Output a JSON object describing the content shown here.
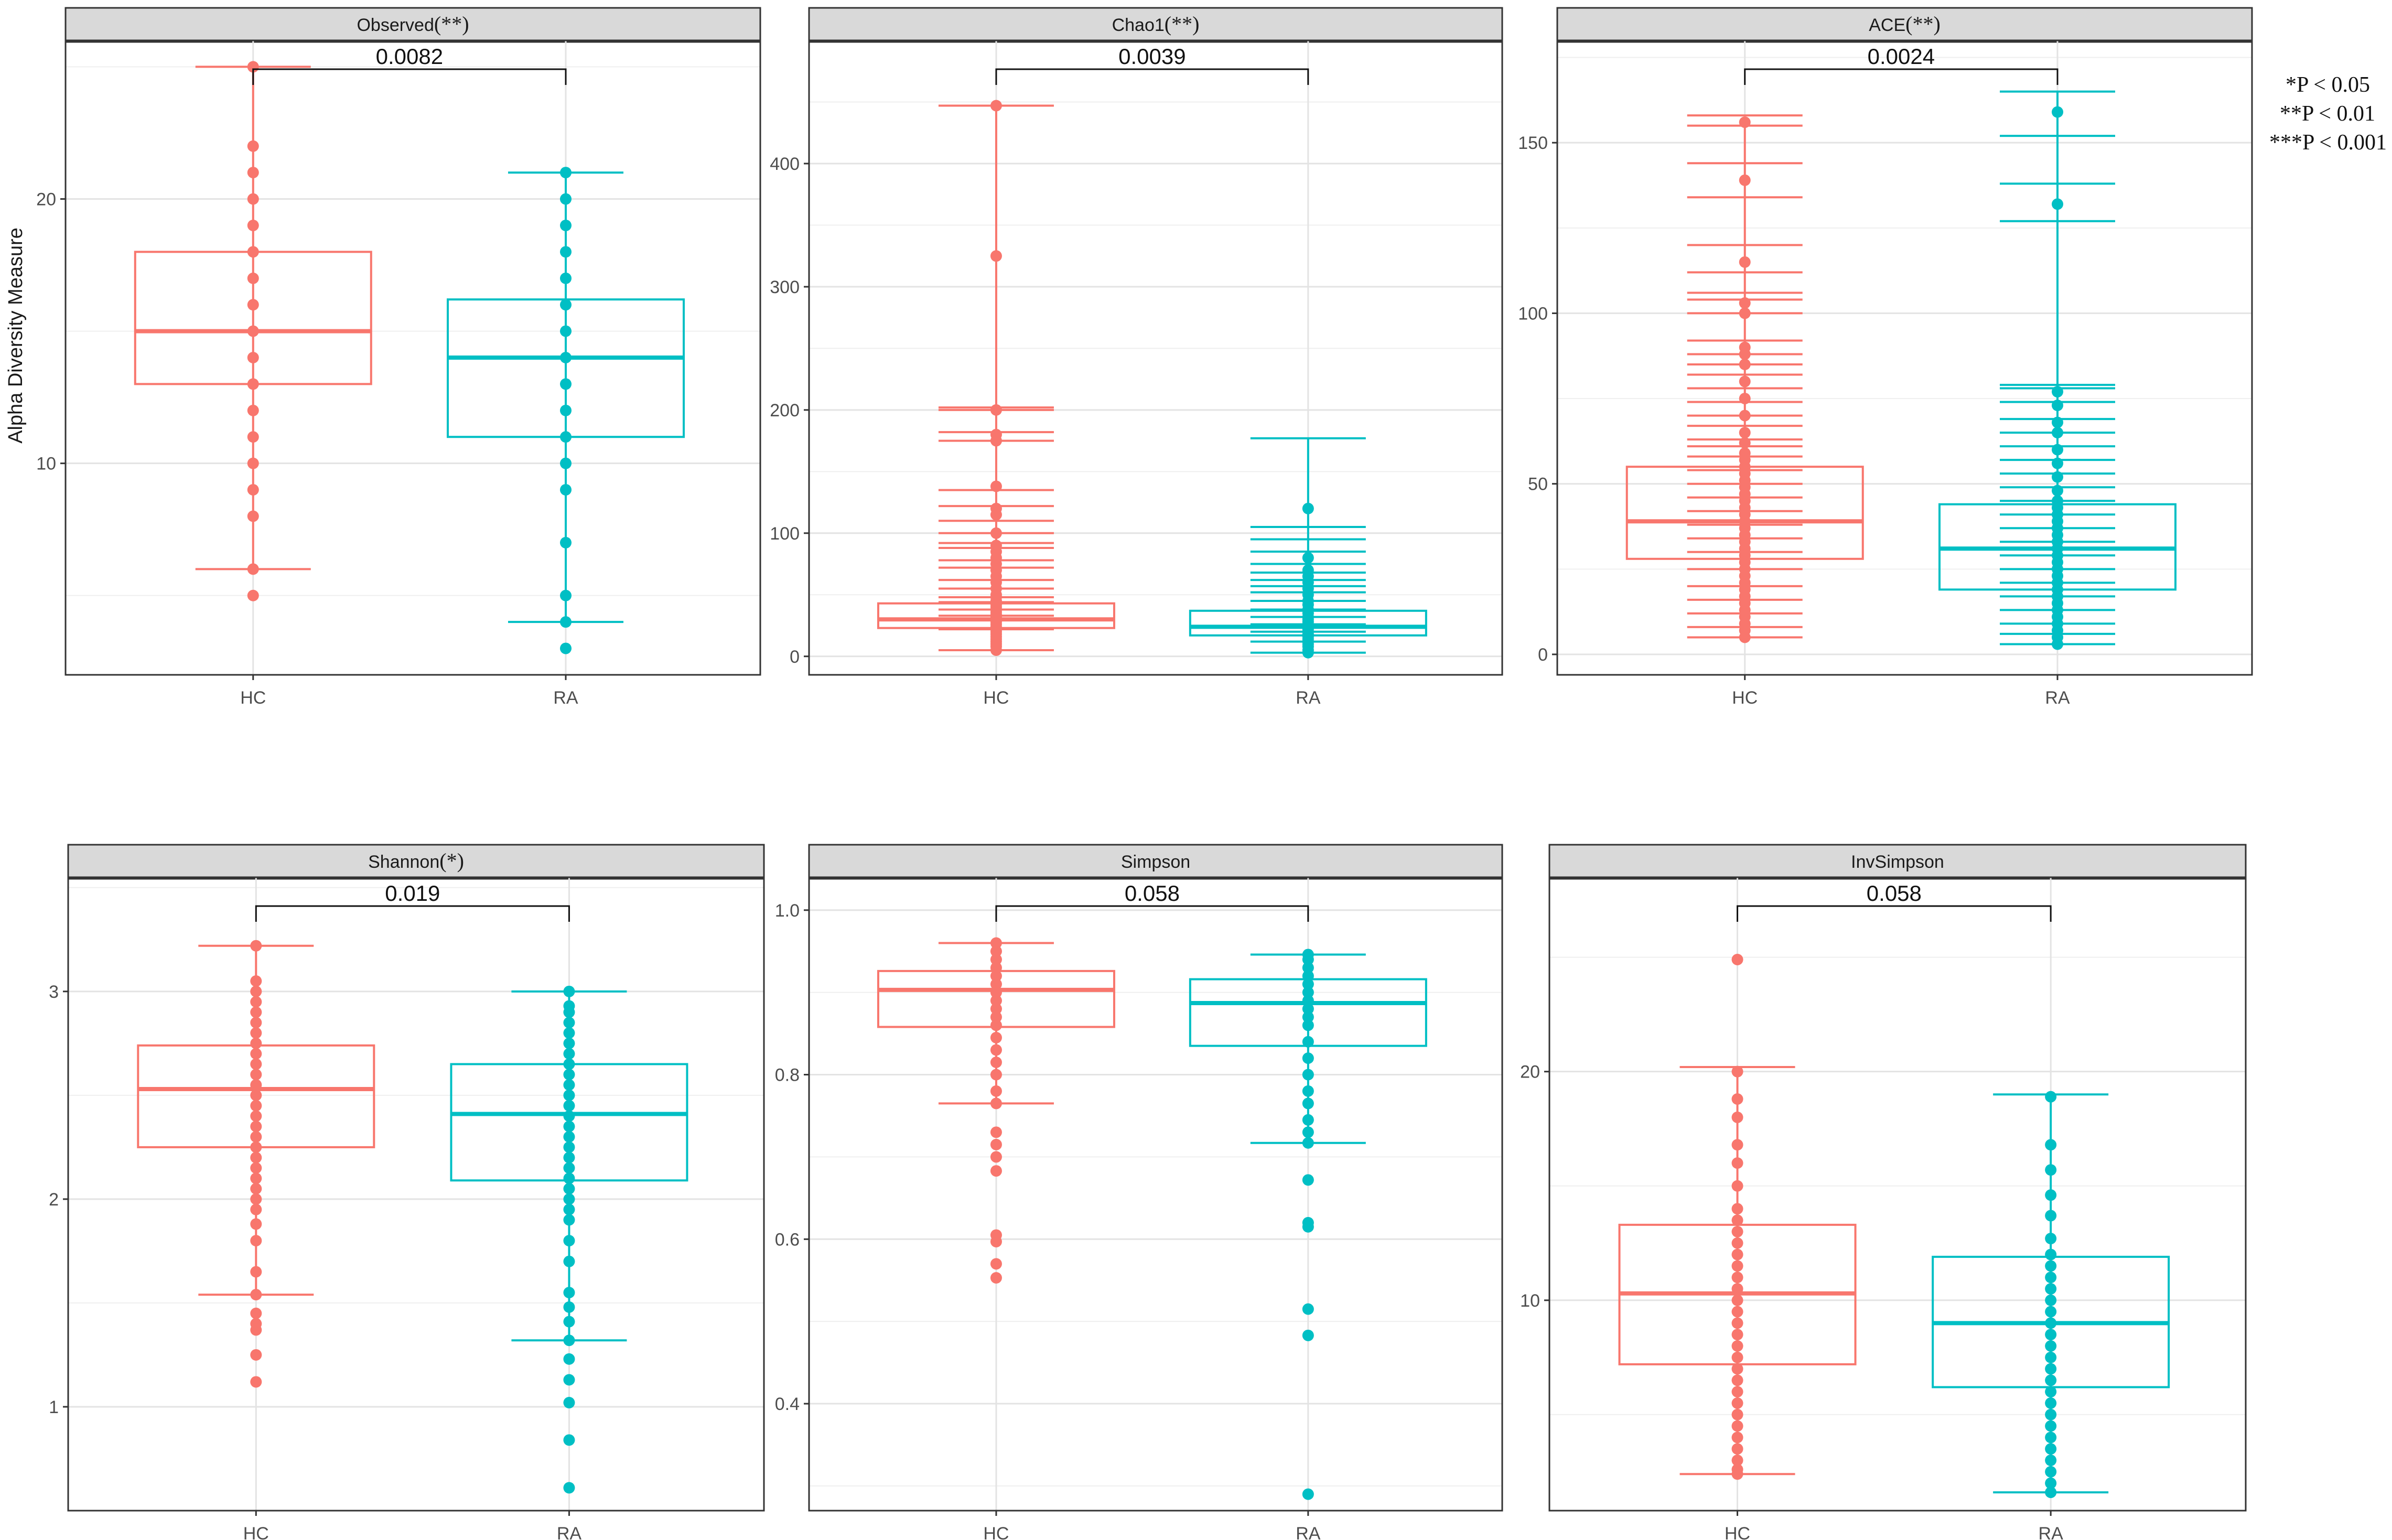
{
  "figure": {
    "y_axis_label": "Alpha Diversity Measure",
    "legend_lines": [
      "*P < 0.05",
      "**P < 0.01",
      "***P < 0.001"
    ]
  },
  "colors": {
    "HC": "#F8766D",
    "RA": "#00BFC4"
  },
  "chart_data": [
    {
      "type": "box",
      "title": "Observed",
      "sig": "(**)",
      "p_label": "0.0082",
      "categories": [
        "HC",
        "RA"
      ],
      "ylim": [
        2,
        26
      ],
      "yticks": [
        10,
        20
      ],
      "series": [
        {
          "name": "HC",
          "q1": 13,
          "median": 15,
          "q3": 18,
          "whisker_low": 6,
          "whisker_high": 25,
          "points": [
            5,
            6,
            8,
            9,
            10,
            11,
            12,
            13,
            14,
            15,
            16,
            17,
            18,
            19,
            20,
            21,
            22,
            25
          ]
        },
        {
          "name": "RA",
          "q1": 11,
          "median": 14,
          "q3": 16.2,
          "whisker_low": 4,
          "whisker_high": 21,
          "points": [
            3,
            4,
            5,
            7,
            9,
            10,
            11,
            12,
            13,
            14,
            15,
            16,
            17,
            18,
            19,
            20,
            21
          ]
        }
      ]
    },
    {
      "type": "box",
      "title": "Chao1",
      "sig": "(**)",
      "p_label": "0.0039",
      "categories": [
        "HC",
        "RA"
      ],
      "ylim": [
        -15,
        500
      ],
      "yticks": [
        0,
        100,
        200,
        300,
        400
      ],
      "series": [
        {
          "name": "HC",
          "q1": 23,
          "median": 30,
          "q3": 43,
          "whisker_low": 5,
          "whisker_high": 447,
          "points": [
            5,
            8,
            10,
            12,
            14,
            16,
            18,
            20,
            22,
            24,
            26,
            28,
            30,
            32,
            34,
            36,
            38,
            40,
            42,
            45,
            48,
            50,
            55,
            60,
            65,
            70,
            75,
            80,
            85,
            90,
            100,
            115,
            120,
            138,
            175,
            180,
            200,
            325,
            447
          ],
          "whisker_caps": [
            5,
            22,
            30,
            33,
            38,
            44,
            48,
            55,
            62,
            72,
            78,
            88,
            92,
            100,
            110,
            122,
            135,
            175,
            182,
            200,
            202,
            447
          ]
        },
        {
          "name": "RA",
          "q1": 17,
          "median": 24,
          "q3": 37,
          "whisker_low": 3,
          "whisker_high": 177,
          "points": [
            3,
            5,
            8,
            10,
            12,
            14,
            16,
            18,
            20,
            22,
            24,
            26,
            28,
            30,
            32,
            35,
            38,
            42,
            45,
            50,
            55,
            60,
            65,
            70,
            80,
            120
          ],
          "whisker_caps": [
            3,
            12,
            20,
            26,
            32,
            38,
            45,
            52,
            57,
            62,
            68,
            75,
            85,
            95,
            105,
            177
          ]
        }
      ]
    },
    {
      "type": "box",
      "title": "ACE",
      "sig": "(**)",
      "p_label": "0.0024",
      "categories": [
        "HC",
        "RA"
      ],
      "ylim": [
        -6,
        180
      ],
      "yticks": [
        0,
        50,
        100,
        150
      ],
      "series": [
        {
          "name": "HC",
          "q1": 28,
          "median": 39,
          "q3": 55,
          "whisker_low": 5,
          "whisker_high": 157,
          "points": [
            5,
            7,
            9,
            11,
            13,
            15,
            17,
            19,
            21,
            23,
            25,
            27,
            29,
            31,
            33,
            35,
            37,
            39,
            41,
            43,
            45,
            47,
            49,
            51,
            53,
            55,
            57,
            59,
            62,
            65,
            70,
            75,
            80,
            85,
            88,
            90,
            100,
            103,
            115,
            139,
            156
          ],
          "whisker_caps": [
            5,
            8,
            12,
            16,
            20,
            25,
            30,
            34,
            38,
            42,
            46,
            50,
            54,
            58,
            61,
            63,
            67,
            70,
            74,
            78,
            82,
            85,
            88,
            92,
            100,
            104,
            106,
            112,
            120,
            134,
            144,
            155,
            158
          ]
        },
        {
          "name": "RA",
          "q1": 19,
          "median": 31,
          "q3": 44,
          "whisker_low": 3,
          "whisker_high": 165,
          "points": [
            3,
            5,
            7,
            9,
            11,
            13,
            15,
            17,
            19,
            21,
            23,
            25,
            27,
            29,
            31,
            33,
            35,
            37,
            39,
            41,
            43,
            45,
            48,
            52,
            56,
            60,
            65,
            68,
            73,
            77,
            132,
            159
          ],
          "whisker_caps": [
            3,
            6,
            9,
            13,
            17,
            21,
            25,
            29,
            33,
            37,
            41,
            45,
            49,
            53,
            57,
            61,
            65,
            69,
            74,
            78,
            79,
            127,
            138,
            152,
            165
          ]
        }
      ]
    },
    {
      "type": "box",
      "title": "Shannon",
      "sig": "(*)",
      "p_label": "0.019",
      "categories": [
        "HC",
        "RA"
      ],
      "ylim": [
        0.5,
        3.55
      ],
      "yticks": [
        1,
        2,
        3
      ],
      "series": [
        {
          "name": "HC",
          "q1": 2.25,
          "median": 2.53,
          "q3": 2.74,
          "whisker_low": 1.54,
          "whisker_high": 3.22,
          "points": [
            1.12,
            1.25,
            1.37,
            1.4,
            1.45,
            1.54,
            1.65,
            1.8,
            1.88,
            1.95,
            2.0,
            2.05,
            2.1,
            2.15,
            2.2,
            2.25,
            2.3,
            2.35,
            2.4,
            2.45,
            2.5,
            2.55,
            2.6,
            2.65,
            2.7,
            2.75,
            2.8,
            2.85,
            2.9,
            2.95,
            3.0,
            3.05,
            3.22
          ]
        },
        {
          "name": "RA",
          "q1": 2.09,
          "median": 2.41,
          "q3": 2.65,
          "whisker_low": 1.32,
          "whisker_high": 3.0,
          "points": [
            0.61,
            0.84,
            1.02,
            1.13,
            1.23,
            1.32,
            1.41,
            1.48,
            1.55,
            1.7,
            1.8,
            1.9,
            1.95,
            2.0,
            2.05,
            2.1,
            2.15,
            2.2,
            2.25,
            2.3,
            2.35,
            2.4,
            2.45,
            2.5,
            2.55,
            2.6,
            2.65,
            2.7,
            2.75,
            2.8,
            2.85,
            2.9,
            2.93,
            3.0
          ]
        }
      ]
    },
    {
      "type": "box",
      "title": "Simpson",
      "sig": "",
      "p_label": "0.058",
      "categories": [
        "HC",
        "RA"
      ],
      "ylim": [
        0.27,
        1.04
      ],
      "yticks": [
        0.4,
        0.6,
        0.8,
        1.0
      ],
      "series": [
        {
          "name": "HC",
          "q1": 0.858,
          "median": 0.903,
          "q3": 0.926,
          "whisker_low": 0.765,
          "whisker_high": 0.96,
          "points": [
            0.553,
            0.57,
            0.597,
            0.605,
            0.683,
            0.7,
            0.715,
            0.73,
            0.765,
            0.78,
            0.8,
            0.815,
            0.83,
            0.845,
            0.86,
            0.87,
            0.88,
            0.89,
            0.9,
            0.91,
            0.92,
            0.93,
            0.94,
            0.95,
            0.96
          ]
        },
        {
          "name": "RA",
          "q1": 0.835,
          "median": 0.887,
          "q3": 0.916,
          "whisker_low": 0.717,
          "whisker_high": 0.946,
          "points": [
            0.29,
            0.483,
            0.515,
            0.615,
            0.62,
            0.672,
            0.717,
            0.73,
            0.745,
            0.765,
            0.78,
            0.8,
            0.82,
            0.84,
            0.86,
            0.87,
            0.88,
            0.89,
            0.9,
            0.91,
            0.92,
            0.93,
            0.94,
            0.946
          ]
        }
      ]
    },
    {
      "type": "box",
      "title": "InvSimpson",
      "sig": "",
      "p_label": "0.058",
      "categories": [
        "HC",
        "RA"
      ],
      "ylim": [
        0.8,
        28.5
      ],
      "yticks": [
        10,
        20
      ],
      "series": [
        {
          "name": "HC",
          "q1": 7.2,
          "median": 10.3,
          "q3": 13.3,
          "whisker_low": 2.4,
          "whisker_high": 20.2,
          "points": [
            2.4,
            2.6,
            3.0,
            3.5,
            4.0,
            4.5,
            5.0,
            5.5,
            6.0,
            6.5,
            7.0,
            7.5,
            8.0,
            8.5,
            9.0,
            9.5,
            10.0,
            10.5,
            11.0,
            11.5,
            12.0,
            12.5,
            13.0,
            13.5,
            14.0,
            15.0,
            16.0,
            16.8,
            18.0,
            18.8,
            20.0,
            24.9
          ]
        },
        {
          "name": "RA",
          "q1": 6.2,
          "median": 9.0,
          "q3": 11.9,
          "whisker_low": 1.6,
          "whisker_high": 19.0,
          "points": [
            1.6,
            2.0,
            2.5,
            3.0,
            3.5,
            4.0,
            4.5,
            5.0,
            5.5,
            6.0,
            6.5,
            7.0,
            7.5,
            8.0,
            8.5,
            9.0,
            9.5,
            10.0,
            10.5,
            11.0,
            11.5,
            12.0,
            12.7,
            13.7,
            14.6,
            15.7,
            16.8,
            18.9
          ]
        }
      ]
    }
  ]
}
